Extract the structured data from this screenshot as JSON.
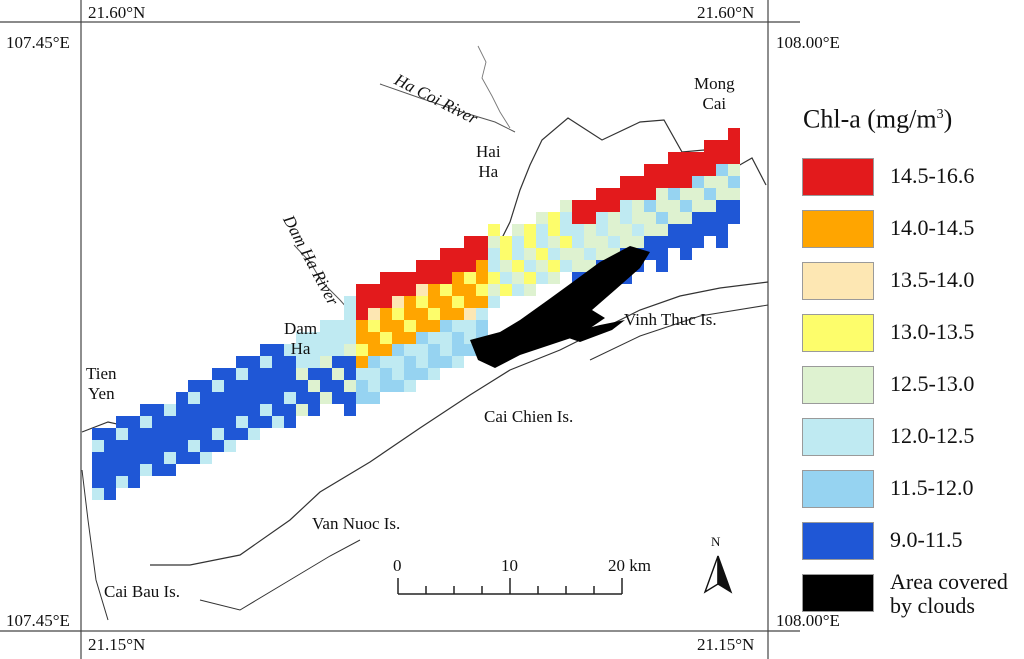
{
  "coordinates": {
    "top_left_lat": "21.60°N",
    "top_right_lat": "21.60°N",
    "bottom_left_lat": "21.15°N",
    "bottom_right_lat": "21.15°N",
    "left_top_lon": "107.45°E",
    "left_bottom_lon": "107.45°E",
    "right_top_lon": "108.00°E",
    "right_bottom_lon": "108.00°E"
  },
  "legend": {
    "title": "Chl-a (mg/m",
    "title_sup": "3",
    "title_end": ")",
    "items": [
      {
        "label": "14.5-16.6",
        "color": "#e31a1c"
      },
      {
        "label": "14.0-14.5",
        "color": "#ffa500"
      },
      {
        "label": "13.5-14.0",
        "color": "#fde7b3"
      },
      {
        "label": "13.0-13.5",
        "color": "#fdfd6b"
      },
      {
        "label": "12.5-13.0",
        "color": "#def2d0"
      },
      {
        "label": "12.0-12.5",
        "color": "#bfeaf2"
      },
      {
        "label": "11.5-12.0",
        "color": "#96d3f1"
      },
      {
        "label": "9.0-11.5",
        "color": "#1f57d6"
      },
      {
        "label": "Area covered",
        "label2": "by clouds",
        "color": "#000000"
      }
    ]
  },
  "places": {
    "mong_cai_1": "Mong",
    "mong_cai_2": "Cai",
    "hai_ha_1": "Hai",
    "hai_ha_2": "Ha",
    "dam_ha_1": "Dam",
    "dam_ha_2": "Ha",
    "tien_yen_1": "Tien",
    "tien_yen_2": "Yen",
    "vinh_thuc": "Vinh Thuc Is.",
    "cai_chien": "Cai Chien Is.",
    "van_nuoc": "Van Nuoc Is.",
    "cai_bau": "Cai Bau Is.",
    "ha_coi_river": "Ha Coi River",
    "dam_ha_river": "Dam Ha River"
  },
  "scale_bar": {
    "tick0": "0",
    "tick1": "10",
    "tick2": "20 km"
  },
  "north_arrow": {
    "label": "N"
  }
}
